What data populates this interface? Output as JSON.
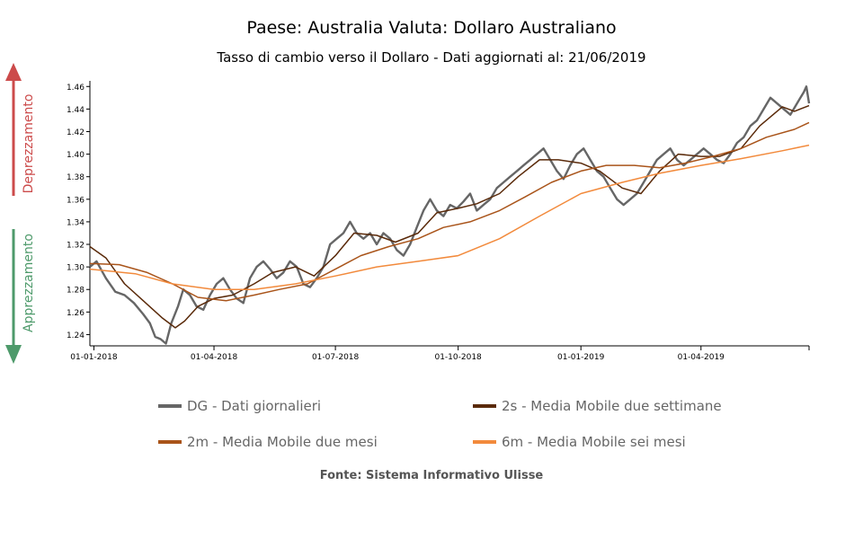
{
  "title": "Paese: Australia Valuta: Dollaro Australiano",
  "subtitle": "Tasso di cambio verso il Dollaro - Dati aggiornati al: 21/06/2019",
  "side_labels": {
    "up": "Deprezzamento",
    "down": "Apprezzamento",
    "up_color": "#cc4b4b",
    "down_color": "#4e9a6b"
  },
  "legend": [
    {
      "label": "DG - Dati giornalieri",
      "color": "#666666"
    },
    {
      "label": "2s - Media Mobile due settimane",
      "color": "#5a2a0a"
    },
    {
      "label": "2m - Media Mobile due mesi",
      "color": "#a9541a"
    },
    {
      "label": "6m - Media Mobile sei mesi",
      "color": "#f28a3c"
    }
  ],
  "source": "Fonte: Sistema Informativo Ulisse",
  "chart_data": {
    "type": "line",
    "x_ticks": [
      "01-01-2018",
      "01-04-2018",
      "01-07-2018",
      "01-10-2018",
      "01-01-2019",
      "01-04-2019"
    ],
    "x_start": "2017-12-29",
    "x_end": "2019-06-21",
    "ylim": [
      1.23,
      1.465
    ],
    "y_ticks": [
      1.24,
      1.26,
      1.28,
      1.3,
      1.32,
      1.34,
      1.36,
      1.38,
      1.4,
      1.42,
      1.44,
      1.46
    ],
    "grid": false,
    "series": [
      {
        "name": "DG - Dati giornalieri",
        "color": "#666666",
        "points": [
          [
            "2017-12-29",
            1.3
          ],
          [
            "2018-01-03",
            1.305
          ],
          [
            "2018-01-10",
            1.29
          ],
          [
            "2018-01-17",
            1.278
          ],
          [
            "2018-01-24",
            1.275
          ],
          [
            "2018-01-31",
            1.268
          ],
          [
            "2018-02-07",
            1.258
          ],
          [
            "2018-02-12",
            1.25
          ],
          [
            "2018-02-16",
            1.238
          ],
          [
            "2018-02-20",
            1.236
          ],
          [
            "2018-02-24",
            1.232
          ],
          [
            "2018-02-28",
            1.25
          ],
          [
            "2018-03-05",
            1.265
          ],
          [
            "2018-03-09",
            1.28
          ],
          [
            "2018-03-14",
            1.275
          ],
          [
            "2018-03-19",
            1.265
          ],
          [
            "2018-03-24",
            1.262
          ],
          [
            "2018-03-29",
            1.275
          ],
          [
            "2018-04-03",
            1.285
          ],
          [
            "2018-04-08",
            1.29
          ],
          [
            "2018-04-13",
            1.28
          ],
          [
            "2018-04-18",
            1.272
          ],
          [
            "2018-04-23",
            1.268
          ],
          [
            "2018-04-28",
            1.29
          ],
          [
            "2018-05-03",
            1.3
          ],
          [
            "2018-05-08",
            1.305
          ],
          [
            "2018-05-13",
            1.298
          ],
          [
            "2018-05-18",
            1.29
          ],
          [
            "2018-05-23",
            1.295
          ],
          [
            "2018-05-28",
            1.305
          ],
          [
            "2018-06-02",
            1.3
          ],
          [
            "2018-06-07",
            1.285
          ],
          [
            "2018-06-12",
            1.282
          ],
          [
            "2018-06-17",
            1.29
          ],
          [
            "2018-06-22",
            1.3
          ],
          [
            "2018-06-27",
            1.32
          ],
          [
            "2018-07-02",
            1.325
          ],
          [
            "2018-07-07",
            1.33
          ],
          [
            "2018-07-12",
            1.34
          ],
          [
            "2018-07-17",
            1.33
          ],
          [
            "2018-07-22",
            1.325
          ],
          [
            "2018-07-27",
            1.33
          ],
          [
            "2018-08-01",
            1.32
          ],
          [
            "2018-08-06",
            1.33
          ],
          [
            "2018-08-11",
            1.325
          ],
          [
            "2018-08-16",
            1.315
          ],
          [
            "2018-08-21",
            1.31
          ],
          [
            "2018-08-26",
            1.32
          ],
          [
            "2018-08-31",
            1.335
          ],
          [
            "2018-09-05",
            1.35
          ],
          [
            "2018-09-10",
            1.36
          ],
          [
            "2018-09-15",
            1.35
          ],
          [
            "2018-09-20",
            1.345
          ],
          [
            "2018-09-25",
            1.355
          ],
          [
            "2018-09-30",
            1.352
          ],
          [
            "2018-10-05",
            1.358
          ],
          [
            "2018-10-10",
            1.365
          ],
          [
            "2018-10-15",
            1.35
          ],
          [
            "2018-10-20",
            1.355
          ],
          [
            "2018-10-25",
            1.36
          ],
          [
            "2018-10-30",
            1.37
          ],
          [
            "2018-11-04",
            1.375
          ],
          [
            "2018-11-09",
            1.38
          ],
          [
            "2018-11-14",
            1.385
          ],
          [
            "2018-11-19",
            1.39
          ],
          [
            "2018-11-24",
            1.395
          ],
          [
            "2018-11-29",
            1.4
          ],
          [
            "2018-12-04",
            1.405
          ],
          [
            "2018-12-09",
            1.395
          ],
          [
            "2018-12-14",
            1.385
          ],
          [
            "2018-12-19",
            1.378
          ],
          [
            "2018-12-24",
            1.39
          ],
          [
            "2018-12-29",
            1.4
          ],
          [
            "2019-01-03",
            1.405
          ],
          [
            "2019-01-08",
            1.395
          ],
          [
            "2019-01-13",
            1.385
          ],
          [
            "2019-01-18",
            1.38
          ],
          [
            "2019-01-23",
            1.37
          ],
          [
            "2019-01-28",
            1.36
          ],
          [
            "2019-02-02",
            1.355
          ],
          [
            "2019-02-07",
            1.36
          ],
          [
            "2019-02-12",
            1.365
          ],
          [
            "2019-02-17",
            1.375
          ],
          [
            "2019-02-22",
            1.385
          ],
          [
            "2019-02-27",
            1.395
          ],
          [
            "2019-03-04",
            1.4
          ],
          [
            "2019-03-09",
            1.405
          ],
          [
            "2019-03-14",
            1.395
          ],
          [
            "2019-03-19",
            1.39
          ],
          [
            "2019-03-24",
            1.395
          ],
          [
            "2019-03-29",
            1.4
          ],
          [
            "2019-04-03",
            1.405
          ],
          [
            "2019-04-08",
            1.4
          ],
          [
            "2019-04-13",
            1.395
          ],
          [
            "2019-04-18",
            1.392
          ],
          [
            "2019-04-23",
            1.4
          ],
          [
            "2019-04-28",
            1.41
          ],
          [
            "2019-05-03",
            1.415
          ],
          [
            "2019-05-08",
            1.425
          ],
          [
            "2019-05-13",
            1.43
          ],
          [
            "2019-05-18",
            1.44
          ],
          [
            "2019-05-23",
            1.45
          ],
          [
            "2019-05-28",
            1.445
          ],
          [
            "2019-06-02",
            1.44
          ],
          [
            "2019-06-07",
            1.435
          ],
          [
            "2019-06-12",
            1.445
          ],
          [
            "2019-06-17",
            1.455
          ],
          [
            "2019-06-19",
            1.46
          ],
          [
            "2019-06-21",
            1.445
          ]
        ]
      },
      {
        "name": "2s - Media Mobile due settimane",
        "color": "#5a2a0a",
        "points": [
          [
            "2017-12-29",
            1.318
          ],
          [
            "2018-01-10",
            1.308
          ],
          [
            "2018-01-24",
            1.285
          ],
          [
            "2018-02-07",
            1.27
          ],
          [
            "2018-02-21",
            1.255
          ],
          [
            "2018-03-03",
            1.246
          ],
          [
            "2018-03-10",
            1.252
          ],
          [
            "2018-03-20",
            1.265
          ],
          [
            "2018-04-01",
            1.272
          ],
          [
            "2018-04-15",
            1.275
          ],
          [
            "2018-05-01",
            1.285
          ],
          [
            "2018-05-15",
            1.295
          ],
          [
            "2018-06-01",
            1.3
          ],
          [
            "2018-06-15",
            1.292
          ],
          [
            "2018-07-01",
            1.31
          ],
          [
            "2018-07-15",
            1.33
          ],
          [
            "2018-08-01",
            1.328
          ],
          [
            "2018-08-15",
            1.322
          ],
          [
            "2018-09-01",
            1.33
          ],
          [
            "2018-09-15",
            1.348
          ],
          [
            "2018-10-01",
            1.352
          ],
          [
            "2018-10-15",
            1.356
          ],
          [
            "2018-11-01",
            1.365
          ],
          [
            "2018-11-15",
            1.38
          ],
          [
            "2018-12-01",
            1.395
          ],
          [
            "2018-12-15",
            1.395
          ],
          [
            "2019-01-01",
            1.392
          ],
          [
            "2019-01-15",
            1.385
          ],
          [
            "2019-02-01",
            1.37
          ],
          [
            "2019-02-15",
            1.365
          ],
          [
            "2019-03-01",
            1.385
          ],
          [
            "2019-03-15",
            1.4
          ],
          [
            "2019-04-01",
            1.398
          ],
          [
            "2019-04-15",
            1.398
          ],
          [
            "2019-05-01",
            1.405
          ],
          [
            "2019-05-15",
            1.425
          ],
          [
            "2019-06-01",
            1.442
          ],
          [
            "2019-06-10",
            1.438
          ],
          [
            "2019-06-21",
            1.443
          ]
        ]
      },
      {
        "name": "2m - Media Mobile due mesi",
        "color": "#a9541a",
        "points": [
          [
            "2017-12-29",
            1.303
          ],
          [
            "2018-01-20",
            1.302
          ],
          [
            "2018-02-10",
            1.295
          ],
          [
            "2018-03-01",
            1.285
          ],
          [
            "2018-03-20",
            1.273
          ],
          [
            "2018-04-10",
            1.27
          ],
          [
            "2018-05-01",
            1.275
          ],
          [
            "2018-05-20",
            1.28
          ],
          [
            "2018-06-10",
            1.285
          ],
          [
            "2018-07-01",
            1.298
          ],
          [
            "2018-07-20",
            1.31
          ],
          [
            "2018-08-10",
            1.318
          ],
          [
            "2018-09-01",
            1.325
          ],
          [
            "2018-09-20",
            1.335
          ],
          [
            "2018-10-10",
            1.34
          ],
          [
            "2018-11-01",
            1.35
          ],
          [
            "2018-11-20",
            1.362
          ],
          [
            "2018-12-10",
            1.375
          ],
          [
            "2019-01-01",
            1.385
          ],
          [
            "2019-01-20",
            1.39
          ],
          [
            "2019-02-10",
            1.39
          ],
          [
            "2019-03-01",
            1.388
          ],
          [
            "2019-03-20",
            1.392
          ],
          [
            "2019-04-10",
            1.398
          ],
          [
            "2019-05-01",
            1.405
          ],
          [
            "2019-05-20",
            1.415
          ],
          [
            "2019-06-10",
            1.422
          ],
          [
            "2019-06-21",
            1.428
          ]
        ]
      },
      {
        "name": "6m - Media Mobile sei mesi",
        "color": "#f28a3c",
        "points": [
          [
            "2017-12-29",
            1.298
          ],
          [
            "2018-02-01",
            1.294
          ],
          [
            "2018-03-01",
            1.285
          ],
          [
            "2018-04-01",
            1.28
          ],
          [
            "2018-05-01",
            1.28
          ],
          [
            "2018-06-01",
            1.285
          ],
          [
            "2018-07-01",
            1.292
          ],
          [
            "2018-08-01",
            1.3
          ],
          [
            "2018-09-01",
            1.305
          ],
          [
            "2018-10-01",
            1.31
          ],
          [
            "2018-11-01",
            1.325
          ],
          [
            "2018-12-01",
            1.345
          ],
          [
            "2019-01-01",
            1.365
          ],
          [
            "2019-02-01",
            1.375
          ],
          [
            "2019-03-01",
            1.383
          ],
          [
            "2019-04-01",
            1.39
          ],
          [
            "2019-05-01",
            1.396
          ],
          [
            "2019-06-01",
            1.403
          ],
          [
            "2019-06-21",
            1.408
          ]
        ]
      }
    ]
  }
}
